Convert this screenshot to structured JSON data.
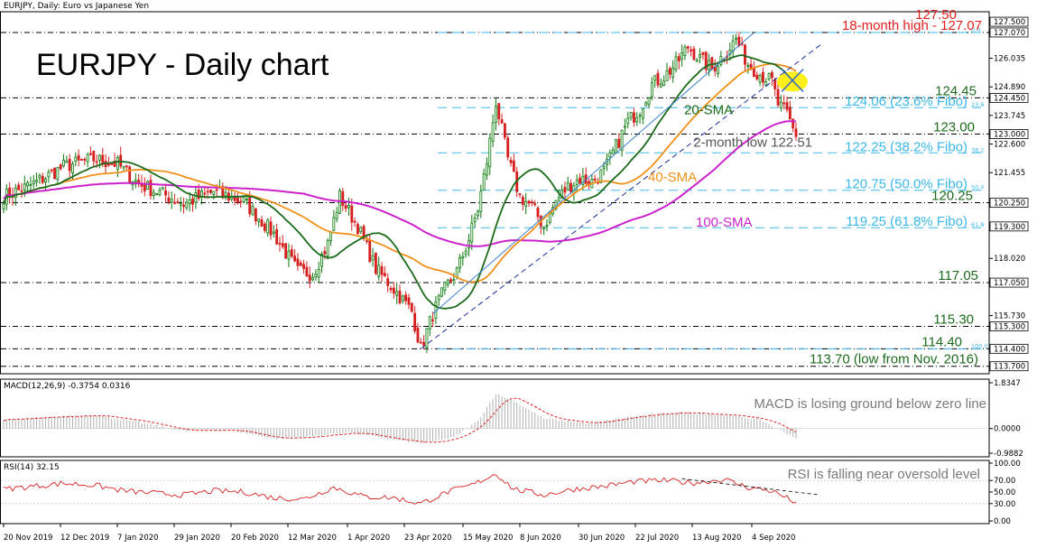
{
  "header": {
    "symbol_label": "EURJPY, Daily:  Euro vs Japanese Yen",
    "title": "EURJPY - Daily chart",
    "macd_label": "MACD(12,26,9) -0.3754 0.0316",
    "rsi_label": "RSI(14) 32.15"
  },
  "colors": {
    "bull": "#0a7a0a",
    "bear": "#d62020",
    "sma20": "#1b6b1b",
    "sma40": "#f0901a",
    "sma100": "#cc22cc",
    "fibo": "#3ab8e8",
    "level_red": "#e02020",
    "level_green": "#1e6b1e",
    "annotation_grey": "#7a7a7a",
    "macd_signal": "#e02020",
    "macd_hist": "#b0b0b0",
    "rsi_line": "#d62020",
    "highlight": "#ffee00"
  },
  "chart_data": {
    "type": "candlestick",
    "instrument": "EURJPY",
    "timeframe": "Daily",
    "ylim": [
      113.4,
      127.9
    ],
    "y_ticks": [
      "127.500",
      "127.070",
      "126.035",
      "124.890",
      "124.450",
      "123.745",
      "123.000",
      "122.600",
      "121.455",
      "120.250",
      "119.300",
      "118.020",
      "117.050",
      "115.730",
      "115.300",
      "114.400",
      "113.700"
    ],
    "x_ticks": [
      "20 Nov 2019",
      "12 Dec 2019",
      "7 Jan 2020",
      "29 Jan 2020",
      "20 Feb 2020",
      "12 Mar 2020",
      "1 Apr 2020",
      "23 Apr 2020",
      "15 May 2020",
      "8 Jun 2020",
      "30 Jun 2020",
      "22 Jul 2020",
      "13 Aug 2020",
      "4 Sep 2020"
    ],
    "price_keypoints": [
      [
        0,
        120.5
      ],
      [
        10,
        121.0
      ],
      [
        20,
        121.7
      ],
      [
        30,
        122.0
      ],
      [
        38,
        121.8
      ],
      [
        45,
        121.0
      ],
      [
        55,
        120.5
      ],
      [
        60,
        120.2
      ],
      [
        70,
        120.7
      ],
      [
        80,
        120.3
      ],
      [
        90,
        119.0
      ],
      [
        98,
        117.5
      ],
      [
        103,
        117.4
      ],
      [
        108,
        118.6
      ],
      [
        112,
        120.5
      ],
      [
        118,
        119.3
      ],
      [
        124,
        117.6
      ],
      [
        130,
        116.8
      ],
      [
        136,
        115.9
      ],
      [
        139,
        114.4
      ],
      [
        143,
        115.8
      ],
      [
        147,
        116.8
      ],
      [
        151,
        117.5
      ],
      [
        155,
        118.8
      ],
      [
        158,
        120.0
      ],
      [
        161,
        121.9
      ],
      [
        164,
        124.3
      ],
      [
        168,
        122.0
      ],
      [
        172,
        120.5
      ],
      [
        176,
        120.1
      ],
      [
        180,
        119.3
      ],
      [
        184,
        120.3
      ],
      [
        188,
        120.9
      ],
      [
        192,
        121.2
      ],
      [
        196,
        121.1
      ],
      [
        200,
        121.5
      ],
      [
        204,
        122.5
      ],
      [
        208,
        123.5
      ],
      [
        212,
        124.0
      ],
      [
        216,
        125.0
      ],
      [
        220,
        125.3
      ],
      [
        224,
        125.8
      ],
      [
        228,
        126.5
      ],
      [
        232,
        126.0
      ],
      [
        236,
        125.6
      ],
      [
        240,
        126.2
      ],
      [
        244,
        126.8
      ],
      [
        248,
        125.8
      ],
      [
        252,
        125.4
      ],
      [
        256,
        125.1
      ],
      [
        258,
        124.2
      ],
      [
        261,
        123.8
      ],
      [
        264,
        122.9
      ]
    ],
    "macd_keypoints": [
      [
        0,
        0.35
      ],
      [
        15,
        0.45
      ],
      [
        30,
        0.55
      ],
      [
        45,
        0.25
      ],
      [
        60,
        -0.1
      ],
      [
        75,
        -0.05
      ],
      [
        90,
        -0.4
      ],
      [
        100,
        -0.35
      ],
      [
        115,
        -0.15
      ],
      [
        130,
        -0.45
      ],
      [
        140,
        -0.6
      ],
      [
        150,
        -0.35
      ],
      [
        158,
        0.3
      ],
      [
        164,
        1.4
      ],
      [
        170,
        1.1
      ],
      [
        180,
        0.4
      ],
      [
        195,
        0.2
      ],
      [
        210,
        0.5
      ],
      [
        225,
        0.65
      ],
      [
        240,
        0.55
      ],
      [
        252,
        0.35
      ],
      [
        264,
        -0.38
      ]
    ],
    "macd_range": [
      -0.9882,
      1.8347
    ],
    "macd_ticks": [
      "1.8347",
      "0.0000",
      "-0.9882"
    ],
    "rsi_keypoints": [
      [
        0,
        55
      ],
      [
        10,
        60
      ],
      [
        20,
        65
      ],
      [
        30,
        62
      ],
      [
        40,
        52
      ],
      [
        50,
        48
      ],
      [
        60,
        45
      ],
      [
        70,
        52
      ],
      [
        80,
        50
      ],
      [
        90,
        40
      ],
      [
        100,
        38
      ],
      [
        110,
        58
      ],
      [
        120,
        42
      ],
      [
        130,
        40
      ],
      [
        139,
        30
      ],
      [
        148,
        50
      ],
      [
        156,
        62
      ],
      [
        164,
        82
      ],
      [
        170,
        55
      ],
      [
        180,
        45
      ],
      [
        190,
        55
      ],
      [
        200,
        60
      ],
      [
        210,
        68
      ],
      [
        220,
        70
      ],
      [
        230,
        66
      ],
      [
        240,
        72
      ],
      [
        248,
        58
      ],
      [
        256,
        52
      ],
      [
        264,
        32
      ]
    ],
    "rsi_range": [
      0,
      100
    ],
    "rsi_ticks": [
      "100.00",
      "70.00",
      "50.00",
      "30.00",
      "0.00"
    ],
    "levels": [
      {
        "value": 127.5,
        "label": "127.50",
        "color": "red"
      },
      {
        "value": 127.07,
        "label": "18-month high - 127.07",
        "color": "red"
      },
      {
        "value": 124.45,
        "label": "124.45",
        "color": "green"
      },
      {
        "value": 123.0,
        "label": "123.00",
        "color": "green"
      },
      {
        "value": 120.25,
        "label": "120.25",
        "color": "green"
      },
      {
        "value": 117.05,
        "label": "117.05",
        "color": "green"
      },
      {
        "value": 115.3,
        "label": "115.30",
        "color": "green"
      },
      {
        "value": 114.4,
        "label": "114.40",
        "color": "green"
      },
      {
        "value": 113.7,
        "label": "113.70 (low from Nov. 2016)",
        "color": "green"
      }
    ],
    "fibo_levels": [
      {
        "value": 127.07,
        "label": "",
        "tag": "0.0"
      },
      {
        "value": 124.06,
        "label": "124.06 (23.6% Fibo)",
        "tag": "23.6"
      },
      {
        "value": 122.25,
        "label": "122.25 (38.2% Fibo)",
        "tag": "38.2"
      },
      {
        "value": 120.75,
        "label": "120.75 (50.0% Fibo)",
        "tag": "50.0"
      },
      {
        "value": 119.25,
        "label": "119.25 (61.8% Fibo)",
        "tag": "61.8"
      },
      {
        "value": 114.4,
        "label": "",
        "tag": "100.0"
      }
    ],
    "annotations": {
      "sma20": "20-SMA",
      "sma40": "40-SMA",
      "sma100": "100-SMA",
      "two_month_low": "2-month low 122.51",
      "macd_note": "MACD is losing ground below zero line",
      "rsi_note": "RSI is falling near oversold level"
    }
  }
}
